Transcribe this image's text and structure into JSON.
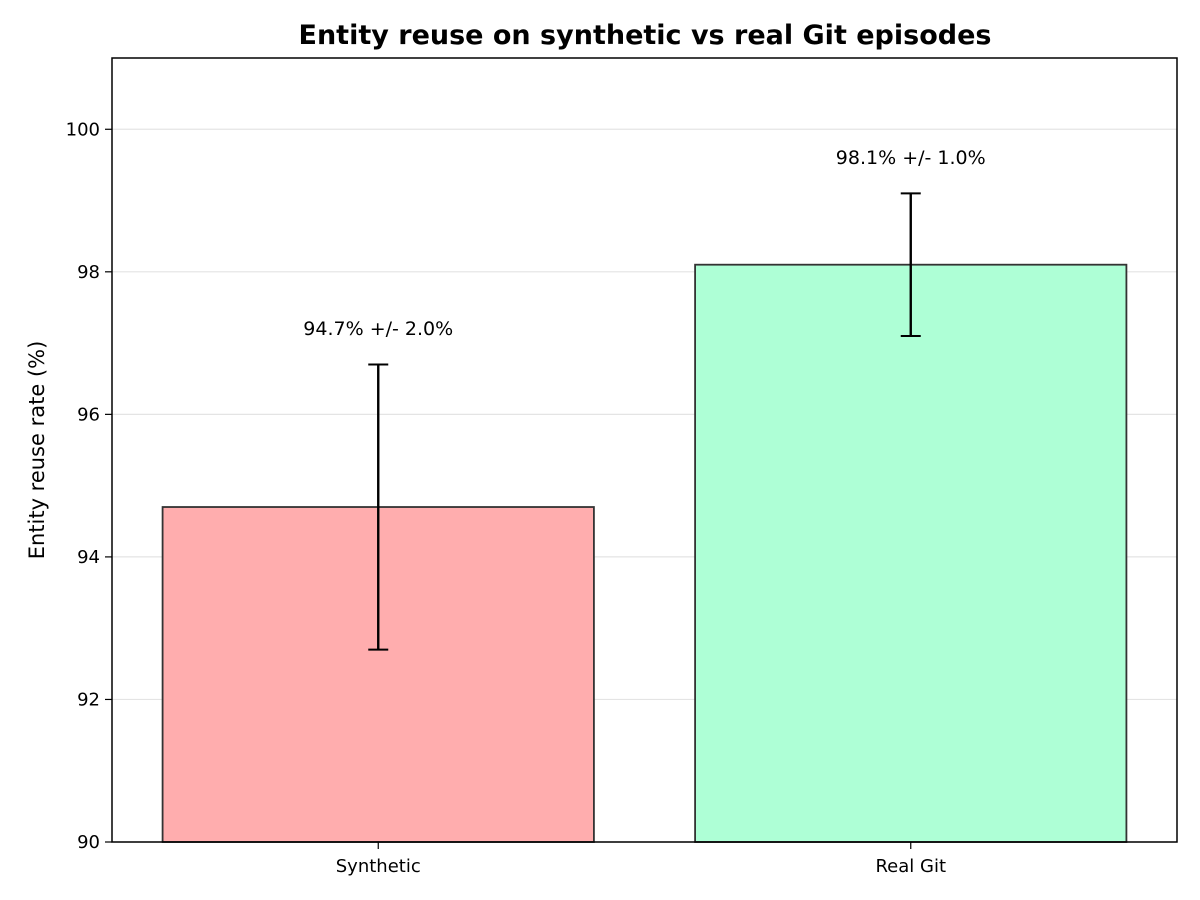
{
  "chart_data": {
    "type": "bar",
    "title": "Entity reuse on synthetic vs real Git episodes",
    "xlabel": "",
    "ylabel": "Entity reuse rate (%)",
    "categories": [
      "Synthetic",
      "Real Git"
    ],
    "values": [
      94.7,
      98.1
    ],
    "errors": [
      2.0,
      1.0
    ],
    "annotations": [
      "94.7% +/- 2.0%",
      "98.1% +/- 1.0%"
    ],
    "colors": [
      "#ffadae",
      "#aeffd6"
    ],
    "edge_color": "#333333",
    "ylim": [
      90,
      101
    ],
    "yticks": [
      90,
      92,
      94,
      96,
      98,
      100
    ],
    "grid": "y"
  }
}
